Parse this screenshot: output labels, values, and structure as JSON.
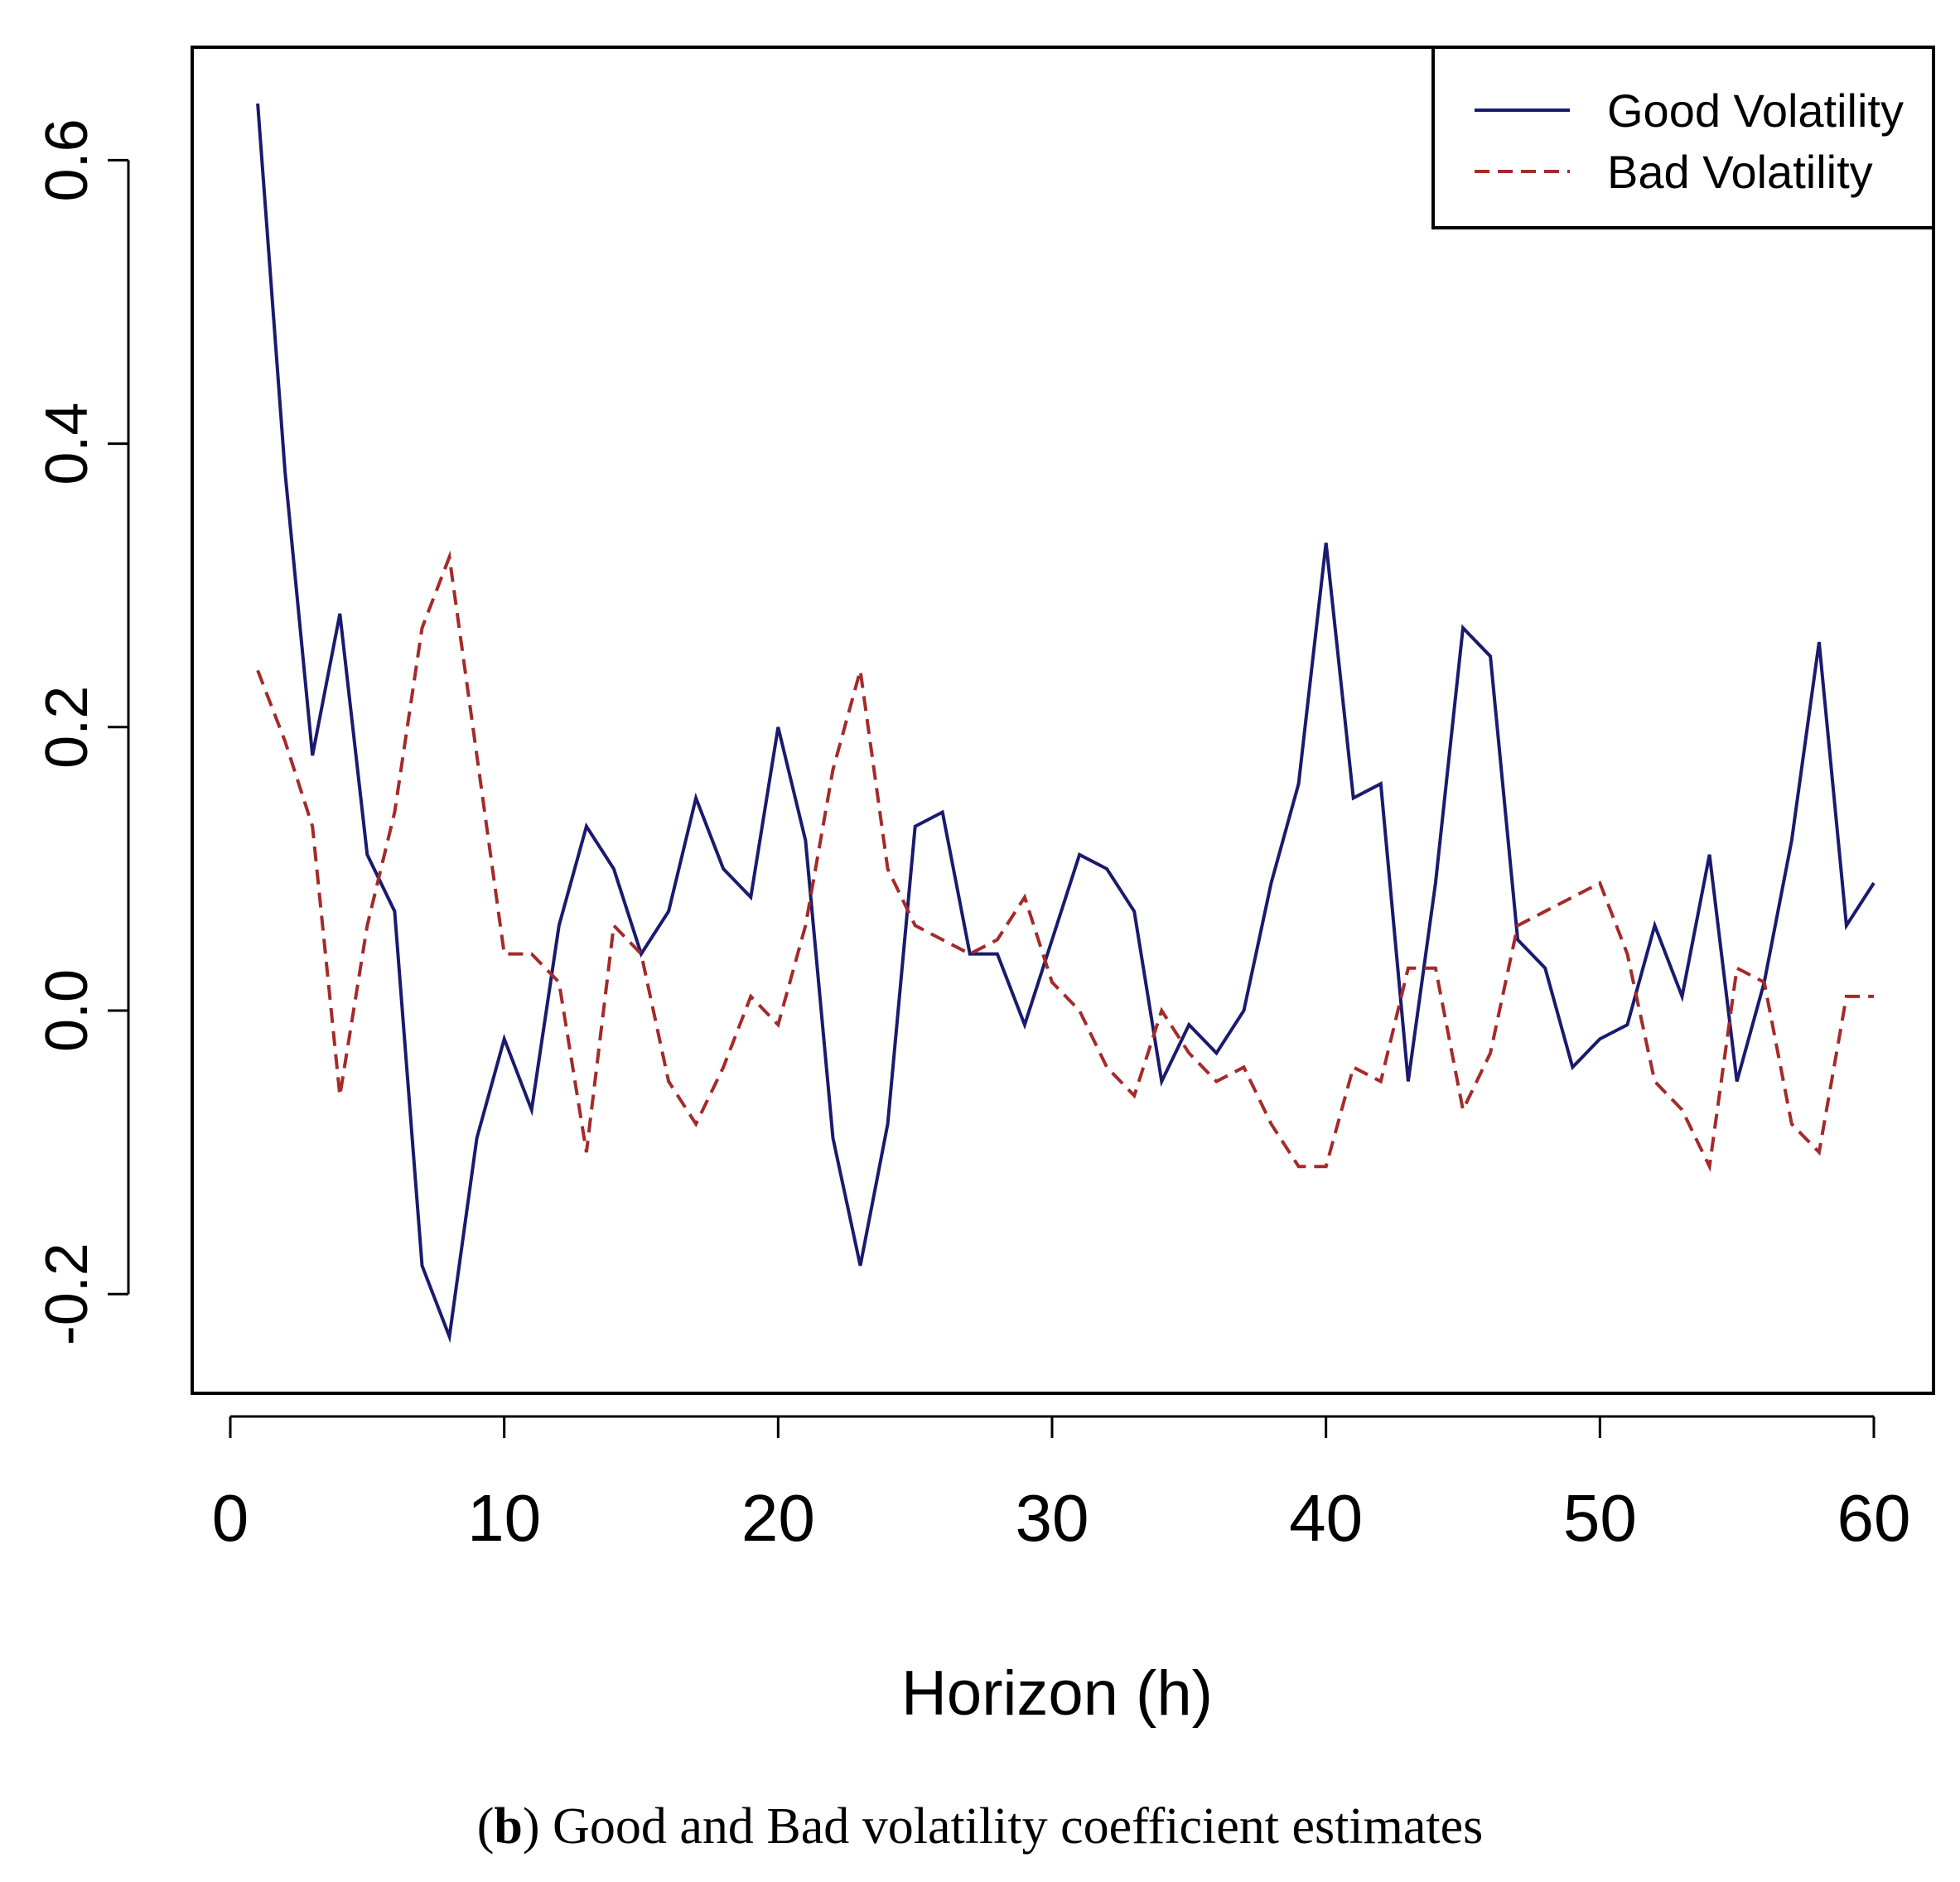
{
  "chart_data": {
    "type": "line",
    "title": "",
    "xlabel": "Horizon (h)",
    "ylabel": "",
    "xlim": [
      0,
      60
    ],
    "ylim": [
      -0.27,
      0.67
    ],
    "xticks": [
      "0",
      "10",
      "20",
      "30",
      "40",
      "50",
      "60"
    ],
    "yticks": [
      "-0.2",
      "0.0",
      "0.2",
      "0.4",
      "0.6"
    ],
    "legend_position": "top-right",
    "x": [
      1,
      2,
      3,
      4,
      5,
      6,
      7,
      8,
      9,
      10,
      11,
      12,
      13,
      14,
      15,
      16,
      17,
      18,
      19,
      20,
      21,
      22,
      23,
      24,
      25,
      26,
      27,
      28,
      29,
      30,
      31,
      32,
      33,
      34,
      35,
      36,
      37,
      38,
      39,
      40,
      41,
      42,
      43,
      44,
      45,
      46,
      47,
      48,
      49,
      50,
      51,
      52,
      53,
      54,
      55,
      56,
      57,
      58,
      59,
      60
    ],
    "series": [
      {
        "name": "Good Volatility",
        "color": "#1a1a6e",
        "style": "solid",
        "values": [
          0.64,
          0.38,
          0.18,
          0.28,
          0.11,
          0.07,
          -0.18,
          -0.23,
          -0.09,
          -0.02,
          -0.07,
          0.06,
          0.13,
          0.1,
          0.04,
          0.07,
          0.15,
          0.1,
          0.08,
          0.2,
          0.12,
          -0.09,
          -0.18,
          -0.08,
          0.13,
          0.14,
          0.04,
          0.04,
          -0.01,
          0.05,
          0.11,
          0.1,
          0.07,
          -0.05,
          -0.01,
          -0.03,
          0.0,
          0.09,
          0.16,
          0.33,
          0.15,
          0.16,
          -0.05,
          0.09,
          0.27,
          0.25,
          0.05,
          0.03,
          -0.04,
          -0.02,
          -0.01,
          0.06,
          0.01,
          0.11,
          -0.05,
          0.02,
          0.12,
          0.26,
          0.06,
          0.09
        ]
      },
      {
        "name": "Bad Volatility",
        "color": "#a52a2a",
        "style": "dashed",
        "values": [
          0.24,
          0.19,
          0.13,
          -0.06,
          0.06,
          0.14,
          0.27,
          0.32,
          0.18,
          0.04,
          0.04,
          0.02,
          -0.1,
          0.06,
          0.04,
          -0.05,
          -0.08,
          -0.04,
          0.01,
          -0.01,
          0.06,
          0.17,
          0.24,
          0.1,
          0.06,
          0.05,
          0.04,
          0.05,
          0.08,
          0.02,
          0.0,
          -0.04,
          -0.06,
          0.0,
          -0.03,
          -0.05,
          -0.04,
          -0.08,
          -0.11,
          -0.11,
          -0.04,
          -0.05,
          0.03,
          0.03,
          -0.07,
          -0.03,
          0.06,
          0.07,
          0.08,
          0.09,
          0.04,
          -0.05,
          -0.07,
          -0.11,
          0.03,
          0.02,
          -0.08,
          -0.1,
          0.01,
          0.01
        ]
      }
    ]
  },
  "caption": {
    "letter": "b",
    "text": "Good and Bad volatility coefficient estimates"
  }
}
